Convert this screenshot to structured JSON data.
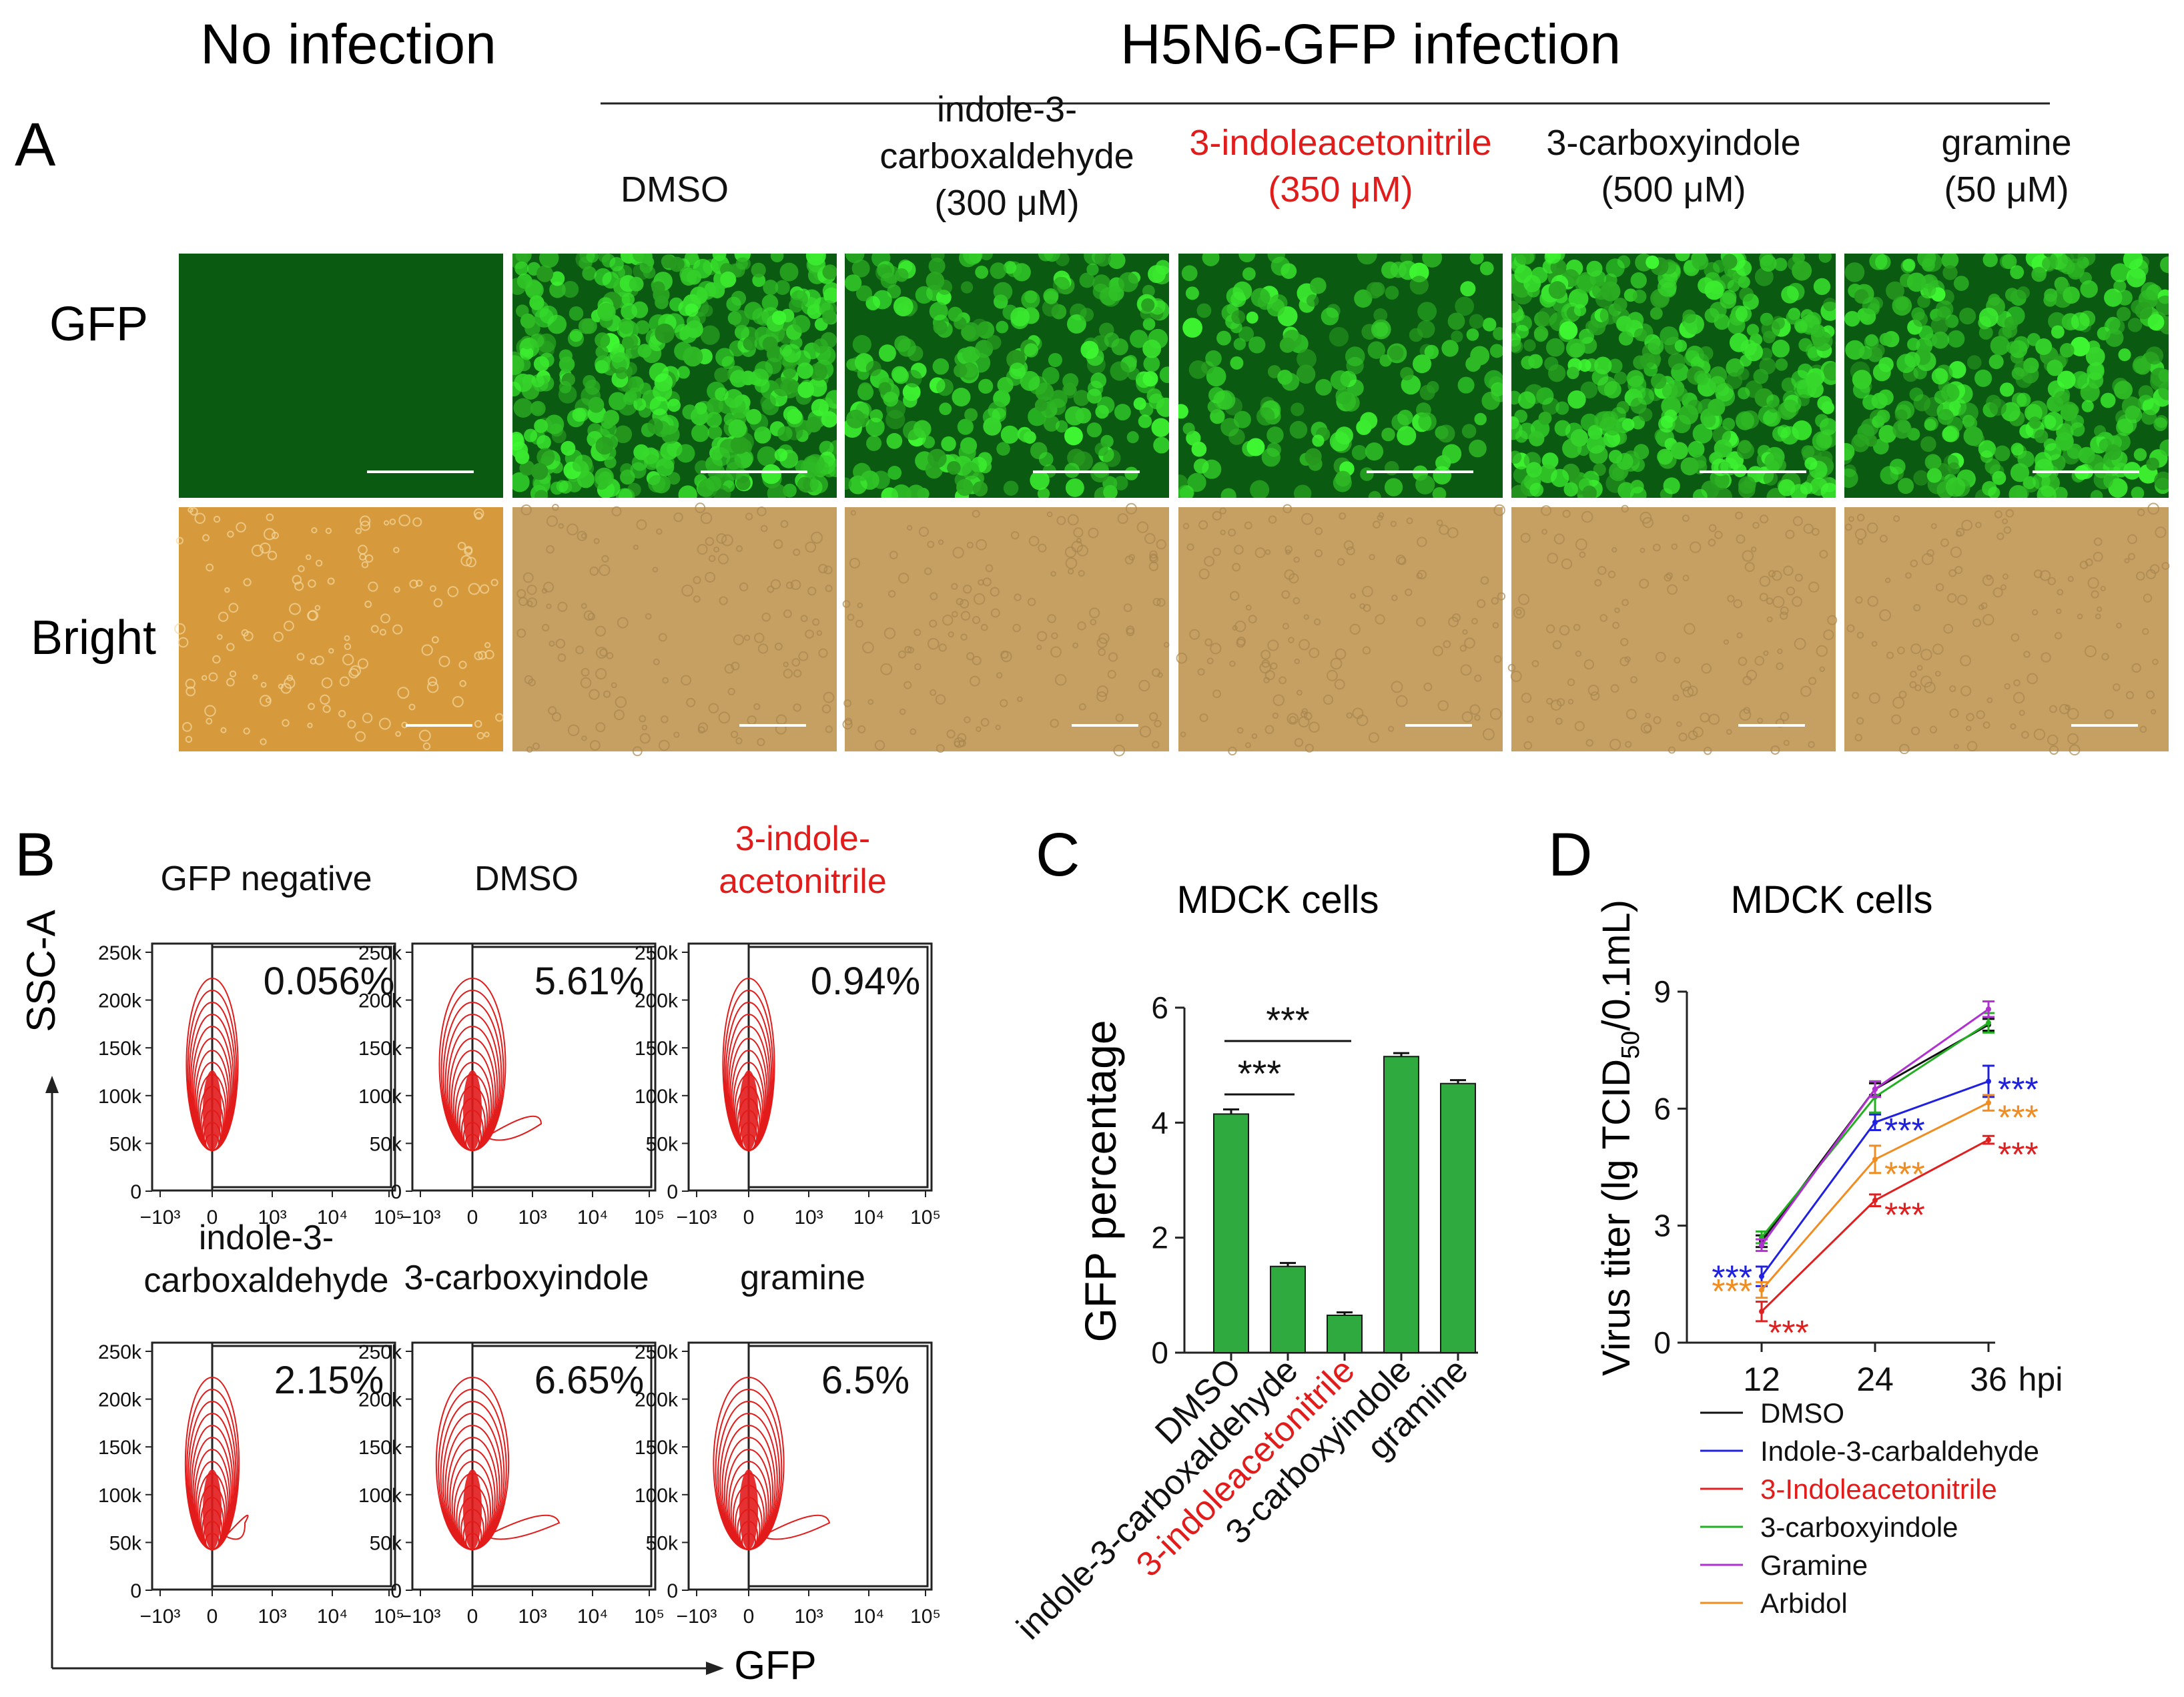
{
  "panel_a": {
    "letter": "A",
    "no_infection_header": "No infection",
    "infection_header": "H5N6-GFP infection",
    "conditions": [
      {
        "lines": [
          "DMSO"
        ],
        "highlight": false
      },
      {
        "lines": [
          "indole-3-",
          "carboxaldehyde",
          "(300 μM)"
        ],
        "highlight": false
      },
      {
        "lines": [
          "3-indoleacetonitrile",
          "(350 μM)"
        ],
        "highlight": true
      },
      {
        "lines": [
          "3-carboxyindole",
          "(500 μM)"
        ],
        "highlight": false
      },
      {
        "lines": [
          "gramine",
          "(50 μM)"
        ],
        "highlight": false
      }
    ],
    "row_labels": [
      "GFP",
      "Bright"
    ],
    "gfp_density": [
      0,
      0.95,
      0.55,
      0.35,
      0.85,
      0.7
    ]
  },
  "panel_b": {
    "letter": "B",
    "y_axis_label": "SSC-A",
    "x_axis_label": "GFP",
    "y_ticks": [
      "250k",
      "200k",
      "150k",
      "100k",
      "50k",
      "0"
    ],
    "x_ticks": [
      "−10³",
      "0",
      "10³",
      "10⁴",
      "10⁵"
    ],
    "plots": [
      {
        "title": [
          "GFP negative"
        ],
        "percent": "0.056%",
        "highlight": false,
        "tail": 0
      },
      {
        "title": [
          "DMSO"
        ],
        "percent": "5.61%",
        "highlight": false,
        "tail": 0.7
      },
      {
        "title": [
          "3-indole-",
          "acetonitrile"
        ],
        "percent": "0.94%",
        "highlight": true,
        "tail": 0
      },
      {
        "title": [
          "indole-3-",
          "carboxaldehyde"
        ],
        "percent": "2.15%",
        "highlight": false,
        "tail": 0.1
      },
      {
        "title": [
          "3-carboxyindole"
        ],
        "percent": "6.65%",
        "highlight": false,
        "tail": 1
      },
      {
        "title": [
          "gramine"
        ],
        "percent": "6.5%",
        "highlight": false,
        "tail": 0.9
      }
    ]
  },
  "chart_data": [
    {
      "type": "bar",
      "panel": "C",
      "title": "MDCK cells",
      "ylabel": "GFP percentage",
      "xlabel": "",
      "ylim": [
        0,
        6
      ],
      "y_ticks": [
        0,
        2,
        4,
        6
      ],
      "categories": [
        "DMSO",
        "indole-3-carboxaldehyde",
        "3-indoleacetonitrile",
        "3-carboxyindole",
        "gramine"
      ],
      "highlight_category": "3-indoleacetonitrile",
      "values": [
        4.15,
        1.5,
        0.65,
        5.15,
        4.68
      ],
      "errors": [
        0.08,
        0.06,
        0.05,
        0.06,
        0.06
      ],
      "bar_color": "#2eaa3e",
      "significance": [
        {
          "from": 0,
          "to": 2,
          "label": "***"
        },
        {
          "from": 0,
          "to": 1,
          "label": "***"
        }
      ]
    },
    {
      "type": "line",
      "panel": "D",
      "title": "MDCK cells",
      "ylabel_prefix": "Virus titer (lg TCID",
      "ylabel_subscript": "50",
      "ylabel_suffix": "/0.1mL)",
      "x_unit": "hpi",
      "x": [
        12,
        24,
        36
      ],
      "ylim": [
        0,
        9
      ],
      "y_ticks": [
        0,
        3,
        6,
        9
      ],
      "series": [
        {
          "name": "DMSO",
          "color": "#111111",
          "values": [
            2.6,
            6.5,
            8.15
          ],
          "errors": [
            0.15,
            0.15,
            0.15
          ],
          "stars": [
            "",
            "",
            ""
          ]
        },
        {
          "name": "Indole-3-carbaldehyde",
          "color": "#2020e0",
          "values": [
            1.7,
            5.65,
            6.7
          ],
          "errors": [
            0.25,
            0.2,
            0.4
          ],
          "stars": [
            "***",
            "***",
            "***"
          ]
        },
        {
          "name": "3-Indoleacetonitrile",
          "color": "#e02020",
          "values": [
            0.8,
            3.65,
            5.2
          ],
          "errors": [
            0.25,
            0.15,
            0.1
          ],
          "stars": [
            "***",
            "***",
            "***"
          ]
        },
        {
          "name": "3-carboxyindole",
          "color": "#22b022",
          "values": [
            2.7,
            6.3,
            8.2
          ],
          "errors": [
            0.15,
            0.4,
            0.25
          ],
          "stars": [
            "",
            "",
            ""
          ]
        },
        {
          "name": "Gramine",
          "color": "#b030d0",
          "values": [
            2.5,
            6.5,
            8.55
          ],
          "errors": [
            0.15,
            0.2,
            0.2
          ],
          "stars": [
            "",
            "",
            ""
          ]
        },
        {
          "name": "Arbidol",
          "color": "#f08c20",
          "values": [
            1.35,
            4.7,
            6.15
          ],
          "errors": [
            0.2,
            0.35,
            0.2
          ],
          "stars": [
            "***",
            "***",
            "***"
          ]
        }
      ]
    }
  ],
  "letters": {
    "c": "C",
    "d": "D"
  }
}
